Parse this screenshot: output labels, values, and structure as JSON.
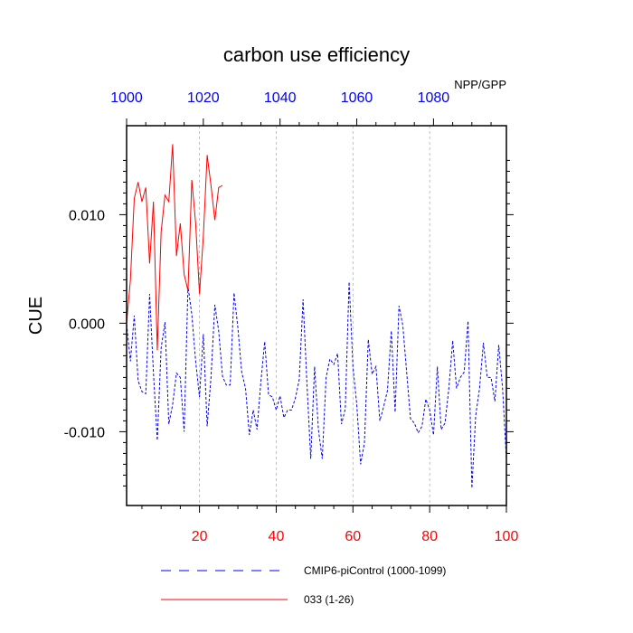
{
  "chart_data": {
    "type": "line",
    "title": "carbon use efficiency",
    "subtitle": "NPP/GPP",
    "ylabel": "CUE",
    "x_bottom": {
      "lim": [
        1,
        100
      ],
      "ticks": [
        20,
        40,
        60,
        80,
        100
      ],
      "color": "#ff0000"
    },
    "x_top": {
      "lim": [
        1000,
        1099
      ],
      "ticks": [
        1000,
        1020,
        1040,
        1060,
        1080
      ],
      "color": "#0000ff"
    },
    "ylim": [
      -0.0168,
      0.0182
    ],
    "yticks": [
      -0.01,
      0.0,
      0.01
    ],
    "ytick_labels": [
      "-0.010",
      "0.000",
      "0.010"
    ],
    "grid": "vertical dashed at bottom x ticks",
    "legend_position": "bottom",
    "series": [
      {
        "name": "CMIP6-piControl (1000-1099)",
        "color": "#0000ff",
        "style": "dashed",
        "axis": "top",
        "x_start": 1000,
        "values": [
          -0.0001,
          -0.0035,
          0.0007,
          -0.0053,
          -0.0063,
          -0.0065,
          0.0027,
          -0.0046,
          -0.0108,
          -0.0023,
          0.0001,
          -0.0093,
          -0.0075,
          -0.0046,
          -0.005,
          -0.01,
          0.0034,
          0.0008,
          -0.0035,
          -0.0068,
          -0.001,
          -0.0095,
          -0.005,
          0.0017,
          -0.0007,
          -0.0049,
          -0.0057,
          -0.0057,
          0.0028,
          -0.0004,
          -0.0045,
          -0.006,
          -0.0103,
          -0.008,
          -0.0098,
          -0.0054,
          -0.0017,
          -0.0066,
          -0.0068,
          -0.008,
          -0.0067,
          -0.0087,
          -0.008,
          -0.008,
          -0.0069,
          -0.0052,
          0.0022,
          -0.0055,
          -0.0125,
          -0.004,
          -0.0098,
          -0.0125,
          -0.005,
          -0.0033,
          -0.0038,
          -0.0028,
          -0.0093,
          -0.0079,
          0.0038,
          -0.004,
          -0.0075,
          -0.013,
          -0.011,
          -0.0015,
          -0.0047,
          -0.004,
          -0.009,
          -0.0077,
          -0.0062,
          -0.0007,
          -0.0082,
          0.0016,
          -0.0002,
          -0.0045,
          -0.0088,
          -0.0092,
          -0.0101,
          -0.0095,
          -0.007,
          -0.008,
          -0.0103,
          -0.004,
          -0.0098,
          -0.0092,
          -0.006,
          -0.0016,
          -0.006,
          -0.005,
          -0.0045,
          0.0002,
          -0.0152,
          -0.0085,
          -0.006,
          -0.0018,
          -0.005,
          -0.005,
          -0.0072,
          -0.002,
          -0.006,
          -0.0125
        ]
      },
      {
        "name": "033 (1-26)",
        "color": "#ff0000",
        "style": "solid",
        "axis": "bottom",
        "x_start": 1,
        "values": [
          0.0,
          0.004,
          0.0115,
          0.013,
          0.0112,
          0.0125,
          0.0055,
          0.0112,
          -0.0025,
          0.0084,
          0.0118,
          0.0112,
          0.0165,
          0.0062,
          0.0092,
          0.0045,
          0.003,
          0.0132,
          0.0092,
          0.0027,
          0.008,
          0.0155,
          0.0127,
          0.0095,
          0.0125,
          0.0127
        ]
      }
    ]
  }
}
